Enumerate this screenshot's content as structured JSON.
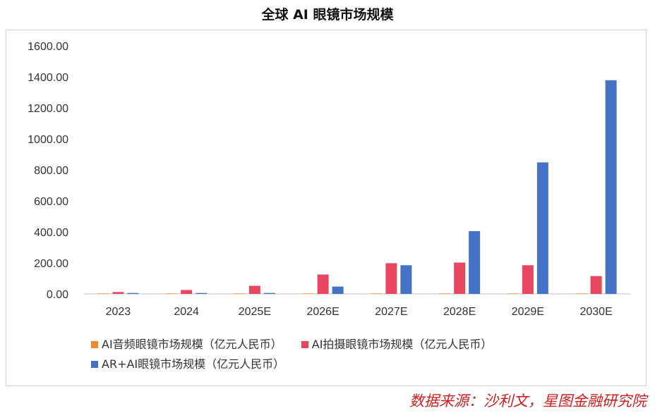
{
  "chart_data": {
    "type": "bar",
    "title": "全球 AI 眼镜市场规模",
    "categories": [
      "2023",
      "2024",
      "2025E",
      "2026E",
      "2027E",
      "2028E",
      "2029E",
      "2030E"
    ],
    "series": [
      {
        "name": "AI音频眼镜市场规模（亿元人民币）",
        "color": "#f08a2c",
        "values": [
          3,
          3,
          3,
          3,
          3,
          3,
          3,
          3
        ]
      },
      {
        "name": "AI拍摄眼镜市场规模（亿元人民币）",
        "color": "#e8475f",
        "values": [
          12,
          25,
          52,
          125,
          198,
          202,
          185,
          115
        ]
      },
      {
        "name": "AR+AI眼镜市场规模（亿元人民币）",
        "color": "#4472c4",
        "values": [
          6,
          6,
          6,
          47,
          185,
          405,
          848,
          1378
        ]
      }
    ],
    "ylim": [
      0,
      1600
    ],
    "yticks": [
      "0.00",
      "200.00",
      "400.00",
      "600.00",
      "800.00",
      "1000.00",
      "1200.00",
      "1400.00",
      "1600.00"
    ],
    "xlabel": "",
    "ylabel": "",
    "grid": false,
    "legend": "bottom"
  },
  "source_note": "数据来源：沙利文，星图金融研究院"
}
